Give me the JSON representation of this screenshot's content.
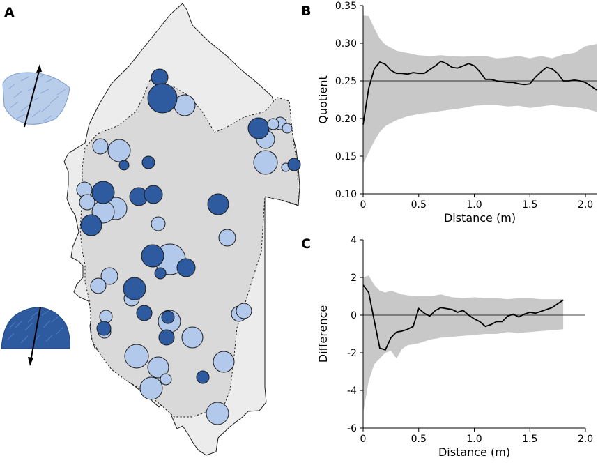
{
  "panel_labels": {
    "a": "A",
    "b": "B",
    "c": "C"
  },
  "colors": {
    "dark_blue": "#2e5aa0",
    "light_blue": "#b3c9ec",
    "band_gray": "#c8c8c8",
    "map_outer": "#ececec",
    "map_inner": "#d9d9d9"
  },
  "panel_a": {
    "icons": [
      {
        "name": "light-blue-coral-icon",
        "label": "light blue coral colony"
      },
      {
        "name": "dark-blue-coral-icon",
        "label": "dark blue coral colony"
      }
    ],
    "map": {
      "shape": "plot outline",
      "legend": []
    },
    "circles_note": "colonies shown as circles sized by colony size; dark and light blue morphs"
  },
  "chart_data": [
    {
      "id": "B",
      "type": "line",
      "title": "",
      "xlabel": "Distance (m)",
      "ylabel": "Quotient",
      "xlim": [
        0,
        2.1
      ],
      "ylim": [
        0.1,
        0.35
      ],
      "xticks": [
        0,
        0.5,
        1.0,
        1.5,
        2.0
      ],
      "xtick_labels": [
        "0",
        "0.5",
        "1.0",
        "1.5",
        "2.0"
      ],
      "yticks": [
        0.1,
        0.15,
        0.2,
        0.25,
        0.3,
        0.35
      ],
      "ytick_labels": [
        "0.10",
        "0.15",
        "0.20",
        "0.25",
        "0.30",
        "0.35"
      ],
      "reference_y": 0.25,
      "series": [
        {
          "name": "observed",
          "x": [
            0.0,
            0.05,
            0.1,
            0.15,
            0.2,
            0.25,
            0.3,
            0.35,
            0.4,
            0.45,
            0.5,
            0.55,
            0.6,
            0.65,
            0.7,
            0.75,
            0.8,
            0.85,
            0.9,
            0.95,
            1.0,
            1.05,
            1.1,
            1.15,
            1.2,
            1.25,
            1.3,
            1.35,
            1.4,
            1.45,
            1.5,
            1.55,
            1.6,
            1.65,
            1.7,
            1.75,
            1.8,
            1.85,
            1.9,
            1.95,
            2.0,
            2.05,
            2.1
          ],
          "values": [
            0.192,
            0.24,
            0.266,
            0.275,
            0.272,
            0.264,
            0.26,
            0.26,
            0.259,
            0.261,
            0.26,
            0.26,
            0.265,
            0.27,
            0.276,
            0.273,
            0.268,
            0.267,
            0.27,
            0.273,
            0.27,
            0.262,
            0.252,
            0.252,
            0.25,
            0.249,
            0.248,
            0.248,
            0.246,
            0.245,
            0.246,
            0.255,
            0.262,
            0.268,
            0.266,
            0.26,
            0.25,
            0.25,
            0.251,
            0.25,
            0.248,
            0.243,
            0.238
          ]
        }
      ],
      "envelope": {
        "x": [
          0.0,
          0.05,
          0.1,
          0.15,
          0.2,
          0.3,
          0.4,
          0.5,
          0.6,
          0.7,
          0.8,
          0.9,
          1.0,
          1.1,
          1.2,
          1.3,
          1.4,
          1.5,
          1.6,
          1.7,
          1.8,
          1.9,
          2.0,
          2.1
        ],
        "upper": [
          0.337,
          0.336,
          0.32,
          0.306,
          0.298,
          0.29,
          0.287,
          0.284,
          0.283,
          0.284,
          0.283,
          0.282,
          0.283,
          0.283,
          0.28,
          0.281,
          0.283,
          0.28,
          0.283,
          0.28,
          0.285,
          0.287,
          0.296,
          0.299
        ],
        "lower": [
          0.14,
          0.155,
          0.17,
          0.182,
          0.19,
          0.198,
          0.203,
          0.206,
          0.208,
          0.21,
          0.212,
          0.214,
          0.217,
          0.218,
          0.218,
          0.216,
          0.217,
          0.214,
          0.216,
          0.218,
          0.216,
          0.215,
          0.213,
          0.209
        ]
      }
    },
    {
      "id": "C",
      "type": "line",
      "title": "",
      "xlabel": "Distance (m)",
      "ylabel": "Difference",
      "xlim": [
        0,
        2.0
      ],
      "ylim": [
        -6,
        4
      ],
      "xticks": [
        0,
        0.5,
        1.0,
        1.5,
        2.0
      ],
      "xtick_labels": [
        "0",
        "0.5",
        "1.0",
        "1.5",
        "2.0"
      ],
      "yticks": [
        -6,
        -4,
        -2,
        0,
        2,
        4
      ],
      "ytick_labels": [
        "-6",
        "-4",
        "-2",
        "0",
        "2",
        "4"
      ],
      "reference_y": 0,
      "series": [
        {
          "name": "observed",
          "x": [
            0.0,
            0.05,
            0.1,
            0.15,
            0.2,
            0.25,
            0.3,
            0.35,
            0.4,
            0.45,
            0.5,
            0.55,
            0.6,
            0.65,
            0.7,
            0.75,
            0.8,
            0.85,
            0.9,
            0.95,
            1.0,
            1.05,
            1.1,
            1.15,
            1.2,
            1.25,
            1.3,
            1.35,
            1.4,
            1.45,
            1.5,
            1.55,
            1.6,
            1.65,
            1.7,
            1.75,
            1.8
          ],
          "values": [
            1.6,
            1.2,
            -0.3,
            -1.75,
            -1.85,
            -1.2,
            -0.9,
            -0.85,
            -0.75,
            -0.6,
            0.35,
            0.1,
            -0.05,
            0.25,
            0.4,
            0.35,
            0.3,
            0.15,
            0.25,
            0.0,
            -0.2,
            -0.35,
            -0.6,
            -0.5,
            -0.35,
            -0.35,
            -0.05,
            0.05,
            -0.1,
            0.05,
            0.15,
            0.1,
            0.2,
            0.3,
            0.4,
            0.6,
            0.8
          ]
        }
      ],
      "envelope": {
        "x": [
          0.0,
          0.05,
          0.1,
          0.15,
          0.2,
          0.25,
          0.3,
          0.35,
          0.4,
          0.5,
          0.6,
          0.7,
          0.8,
          0.9,
          1.0,
          1.1,
          1.2,
          1.3,
          1.4,
          1.5,
          1.6,
          1.7,
          1.8
        ],
        "upper": [
          2.0,
          2.1,
          1.6,
          1.3,
          1.2,
          1.3,
          1.2,
          1.1,
          1.05,
          1.0,
          1.0,
          1.1,
          0.95,
          0.9,
          0.95,
          0.9,
          0.9,
          0.85,
          0.9,
          0.9,
          0.85,
          0.85,
          0.85
        ],
        "lower": [
          -5.2,
          -3.5,
          -2.6,
          -2.3,
          -2.0,
          -1.9,
          -2.3,
          -1.8,
          -1.6,
          -1.5,
          -1.3,
          -1.2,
          -1.15,
          -1.1,
          -1.05,
          -1.0,
          -1.0,
          -0.9,
          -0.95,
          -0.9,
          -0.85,
          -0.8,
          -0.75
        ]
      }
    }
  ]
}
